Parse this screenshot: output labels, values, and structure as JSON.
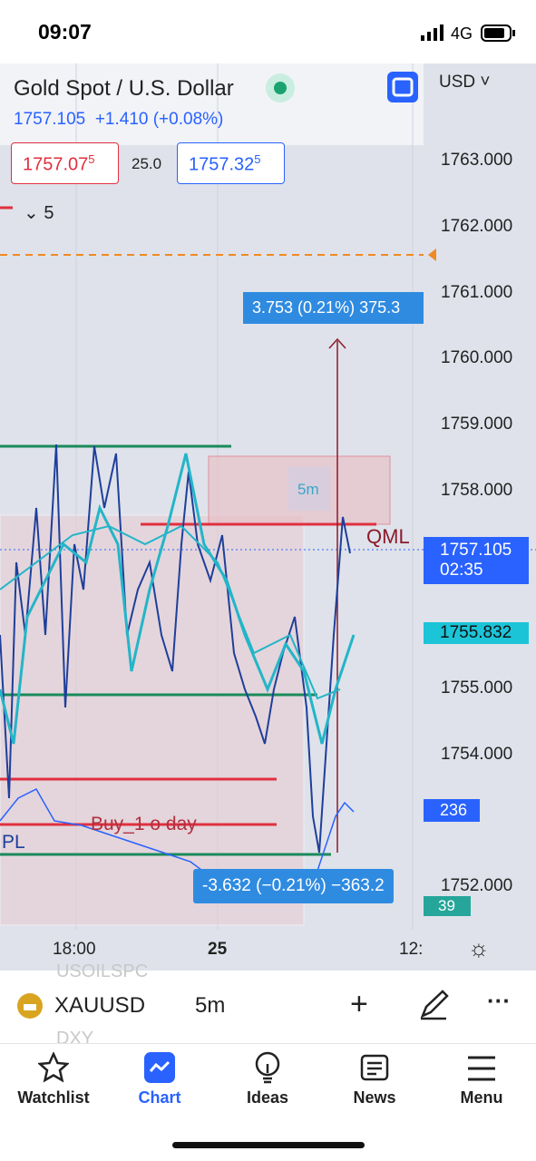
{
  "status": {
    "time": "09:07",
    "network": "4G"
  },
  "header": {
    "title": "Gold Spot / U.S. Dollar",
    "price": "1757.105",
    "change": "+1.410 (+0.08%)",
    "currency": "USD",
    "sell": {
      "main": "1757.07",
      "pip": "5"
    },
    "spread": "25.0",
    "buy": {
      "main": "1757.32",
      "pip": "5"
    },
    "indicator_count": "5"
  },
  "price_axis": [
    "1763.000",
    "1762.000",
    "1761.000",
    "1760.000",
    "1759.000",
    "1758.000",
    "1755.000",
    "1754.000",
    "1752.000"
  ],
  "badges": {
    "last_price": "1757.105",
    "countdown": "02:35",
    "ma_price": "1755.832",
    "volume_a": "236",
    "volume_b": "39"
  },
  "annotations": {
    "measure_up": "3.753 (0.21%) 375.3",
    "measure_down": "-3.632 (−0.21%) −363.2",
    "timeframe": "5m",
    "qml": "QML",
    "buy_label": "Buy_1 o day",
    "pl": "PL"
  },
  "time_axis": [
    "18:00",
    "25",
    "12:"
  ],
  "symbol_bar": {
    "symbol": "XAUUSD",
    "interval": "5m",
    "ghost_1": "USOILSPC",
    "ghost_2": "DXY"
  },
  "nav": [
    "Watchlist",
    "Chart",
    "Ideas",
    "News",
    "Menu"
  ]
}
